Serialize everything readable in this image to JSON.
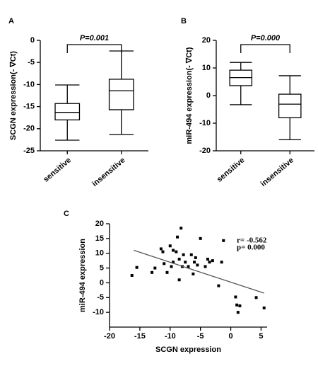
{
  "chart_data": [
    {
      "type": "box",
      "panel": "A",
      "ylabel": "SCGN expression(- ∇Ct)",
      "annotation": "P=0.001",
      "categories": [
        "sensitive",
        "insensitive"
      ],
      "boxes": [
        {
          "min": -22.6,
          "q1": -18,
          "median": -16.3,
          "q3": -14.3,
          "max": -10.1
        },
        {
          "min": -21.3,
          "q1": -15.7,
          "median": -11.4,
          "q3": -8.8,
          "max": -2.4
        }
      ],
      "ylim": [
        -25,
        0
      ],
      "yticks": [
        -25,
        -20,
        -15,
        -10,
        -5,
        0
      ],
      "color": "#000000"
    },
    {
      "type": "box",
      "panel": "B",
      "ylabel": "miR-494 expression(- ∇Ct)",
      "annotation": "P=0.000",
      "categories": [
        "sensitive",
        "insensitive"
      ],
      "boxes": [
        {
          "min": -3.3,
          "q1": 3.6,
          "median": 6.5,
          "q3": 9.2,
          "max": 12
        },
        {
          "min": -16,
          "q1": -8,
          "median": -3.1,
          "q3": 0.5,
          "max": 7.2
        }
      ],
      "ylim": [
        -20,
        20
      ],
      "yticks": [
        -20,
        -10,
        0,
        10,
        20
      ],
      "color": "#000000"
    },
    {
      "type": "scatter",
      "panel": "C",
      "xlabel": "SCGN expression",
      "ylabel": "miR-494 expression",
      "annotations": [
        "r= -0.562",
        "p= 0.000"
      ],
      "x": [
        -16.3,
        -15.5,
        -13,
        -12.5,
        -11.5,
        -11.2,
        -11,
        -10.5,
        -10,
        -9.8,
        -9.5,
        -9.5,
        -9,
        -8.8,
        -8.5,
        -8.5,
        -8.2,
        -8,
        -7.8,
        -7.5,
        -7,
        -6.5,
        -6.2,
        -6,
        -5.8,
        -5.5,
        -5,
        -4.2,
        -3.8,
        -3.5,
        -3,
        -2,
        -1.5,
        -1.2,
        0.8,
        1.0,
        1.2,
        1.5,
        4.2,
        5.5
      ],
      "y": [
        2.5,
        5.2,
        3.5,
        5,
        11.5,
        10.5,
        6.5,
        3.5,
        12.5,
        5.5,
        7,
        11,
        10.5,
        15.5,
        8,
        1,
        18.5,
        5.5,
        9.5,
        7,
        5.5,
        9.5,
        3,
        7,
        8.5,
        6,
        15,
        5.5,
        8,
        7,
        7.5,
        -1,
        7,
        14.3,
        -4.8,
        -7.5,
        -10,
        -7.8,
        -5,
        -8.5
      ],
      "trendline": {
        "x": [
          -16,
          5.5
        ],
        "y": [
          11,
          -3.5
        ]
      },
      "xlim": [
        -20,
        6
      ],
      "xticks": [
        -20,
        -15,
        -10,
        -5,
        0,
        5
      ],
      "ylim": [
        -15,
        20
      ],
      "yticks": [
        -10,
        -5,
        0,
        5,
        10,
        15,
        20
      ],
      "color": "#000000",
      "trend_color": "#555555"
    }
  ]
}
